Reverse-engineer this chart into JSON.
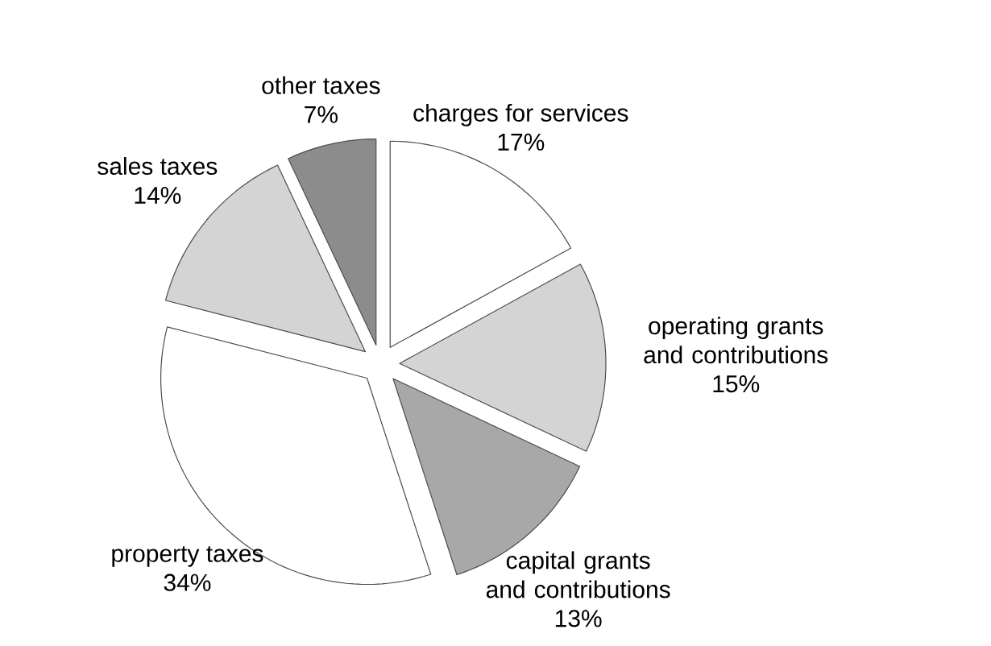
{
  "chart_data": {
    "type": "pie",
    "categories": [
      "charges for services",
      "operating grants and contributions",
      "capital grants and contributions",
      "property taxes",
      "sales taxes",
      "other taxes"
    ],
    "values": [
      17,
      15,
      13,
      34,
      14,
      7
    ],
    "value_labels": [
      "17%",
      "15%",
      "13%",
      "34%",
      "14%",
      "7%"
    ],
    "colors": [
      "#ffffff",
      "#d4d4d4",
      "#a8a8a8",
      "#ffffff",
      "#d4d4d4",
      "#8c8c8c"
    ]
  }
}
